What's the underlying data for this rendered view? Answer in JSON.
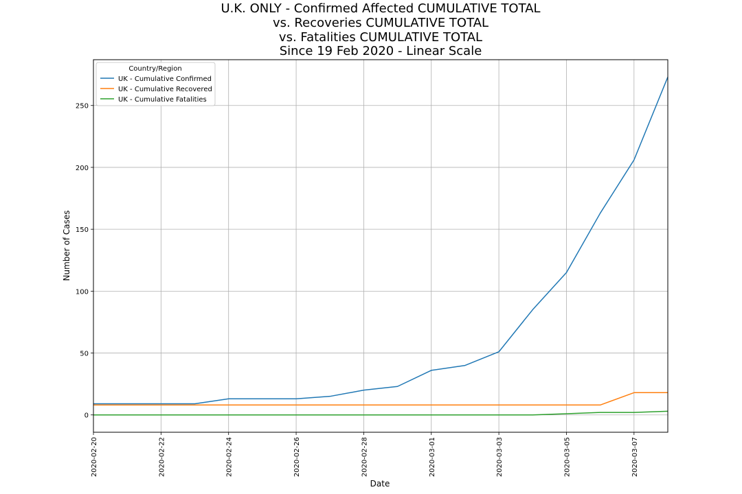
{
  "chart_data": {
    "type": "line",
    "title": [
      "U.K. ONLY - Confirmed Affected CUMULATIVE TOTAL",
      "vs. Recoveries CUMULATIVE TOTAL",
      "vs. Fatalities CUMULATIVE TOTAL",
      "Since 19 Feb 2020 - Linear Scale"
    ],
    "xlabel": "Date",
    "ylabel": "Number of Cases",
    "x": [
      "2020-02-20",
      "2020-02-21",
      "2020-02-22",
      "2020-02-23",
      "2020-02-24",
      "2020-02-25",
      "2020-02-26",
      "2020-02-27",
      "2020-02-28",
      "2020-02-29",
      "2020-03-01",
      "2020-03-02",
      "2020-03-03",
      "2020-03-04",
      "2020-03-05",
      "2020-03-06",
      "2020-03-07",
      "2020-03-08"
    ],
    "xticks": [
      "2020-02-20",
      "2020-02-22",
      "2020-02-24",
      "2020-02-26",
      "2020-02-28",
      "2020-03-01",
      "2020-03-03",
      "2020-03-05",
      "2020-03-07"
    ],
    "yticks": [
      0,
      50,
      100,
      150,
      200,
      250
    ],
    "ylim": [
      -14,
      287
    ],
    "grid": true,
    "legend": {
      "title": "Country/Region",
      "placement": "top-left"
    },
    "series": [
      {
        "name": "UK - Cumulative Confirmed",
        "color": "#1f77b4",
        "values": [
          9,
          9,
          9,
          9,
          13,
          13,
          13,
          15,
          20,
          23,
          36,
          40,
          51,
          85,
          115,
          163,
          206,
          273
        ]
      },
      {
        "name": "UK - Cumulative Recovered",
        "color": "#ff7f0e",
        "values": [
          8,
          8,
          8,
          8,
          8,
          8,
          8,
          8,
          8,
          8,
          8,
          8,
          8,
          8,
          8,
          8,
          18,
          18
        ]
      },
      {
        "name": "UK - Cumulative Fatalities",
        "color": "#2ca02c",
        "values": [
          0,
          0,
          0,
          0,
          0,
          0,
          0,
          0,
          0,
          0,
          0,
          0,
          0,
          0,
          1,
          2,
          2,
          3
        ]
      }
    ]
  }
}
